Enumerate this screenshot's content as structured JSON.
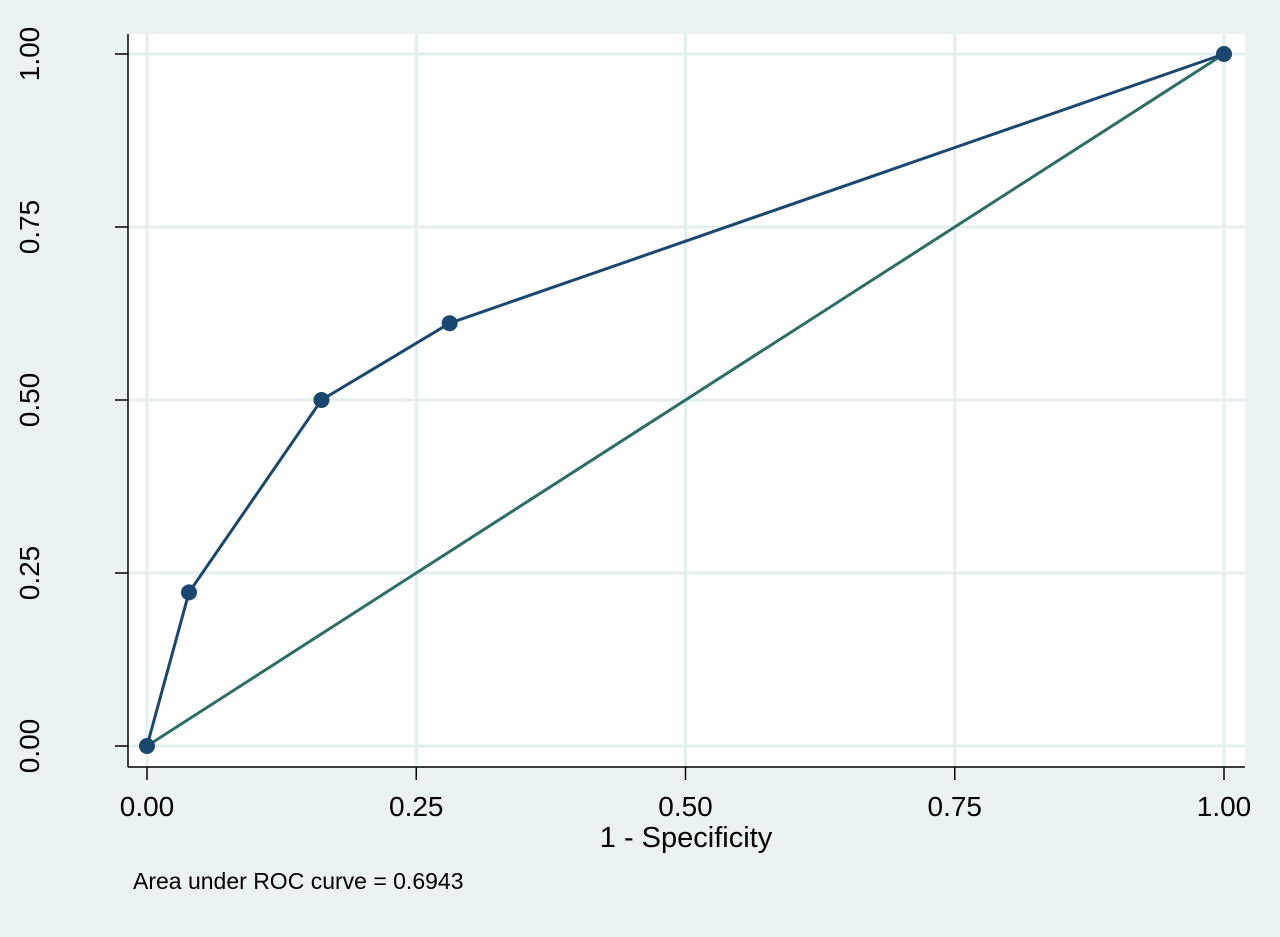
{
  "chart_data": {
    "type": "line",
    "title": "",
    "xlabel": "1 - Specificity",
    "ylabel": "",
    "xlim": [
      0,
      1
    ],
    "ylim": [
      0,
      1
    ],
    "grid": true,
    "x_ticks": [
      "0.00",
      "0.25",
      "0.50",
      "0.75",
      "1.00"
    ],
    "y_ticks": [
      "0.00",
      "0.25",
      "0.50",
      "0.75",
      "1.00"
    ],
    "tick_values": [
      0,
      0.25,
      0.5,
      0.75,
      1
    ],
    "series": [
      {
        "x": [
          0,
          0.039,
          0.162,
          0.281,
          1
        ],
        "y": [
          0,
          0.222,
          0.5,
          0.611,
          1
        ],
        "markers": true,
        "color": "#1a476f"
      },
      {
        "x": [
          0,
          1
        ],
        "y": [
          0,
          1
        ],
        "markers": false,
        "color": "#2d6d66"
      }
    ],
    "annotation": "Area under ROC curve = 0.6943"
  }
}
